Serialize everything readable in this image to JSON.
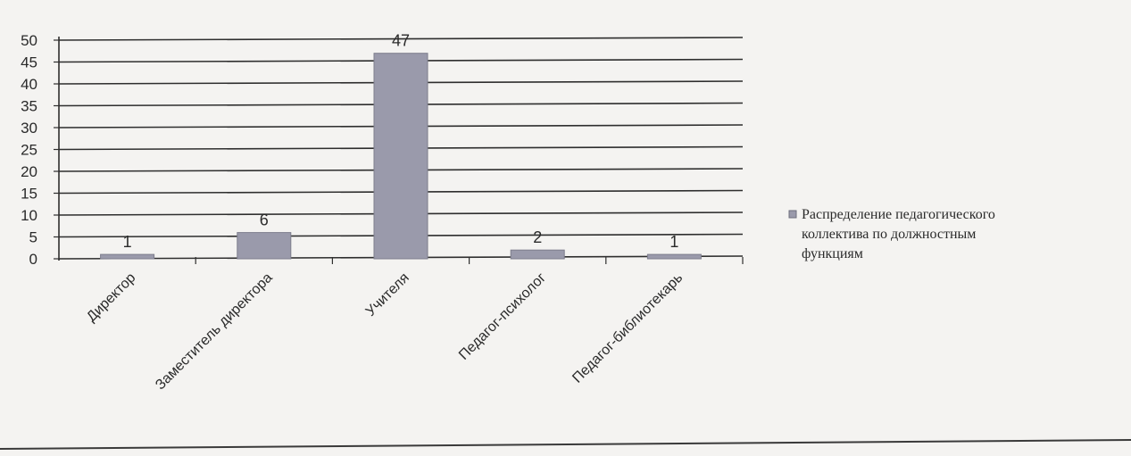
{
  "chart_data": {
    "type": "bar",
    "title": "",
    "xlabel": "",
    "ylabel": "",
    "categories": [
      "Директор",
      "Заместитель директора",
      "Учителя",
      "Педагог-психолог",
      "Педагог-библиотекарь"
    ],
    "series": [
      {
        "name": "Распределение педагогического коллектива по должностным функциям",
        "values": [
          1,
          6,
          47,
          2,
          1
        ],
        "color": "#9a9aab"
      }
    ],
    "data_labels": [
      "1",
      "6",
      "47",
      "2",
      "1"
    ],
    "ylim": [
      0,
      50
    ],
    "yticks": [
      0,
      5,
      10,
      15,
      20,
      25,
      30,
      35,
      40,
      45,
      50
    ],
    "grid": true,
    "legend_position": "right",
    "legend_lines": [
      "Распределение педагогического",
      "коллектива по должностным",
      "функциям"
    ]
  }
}
